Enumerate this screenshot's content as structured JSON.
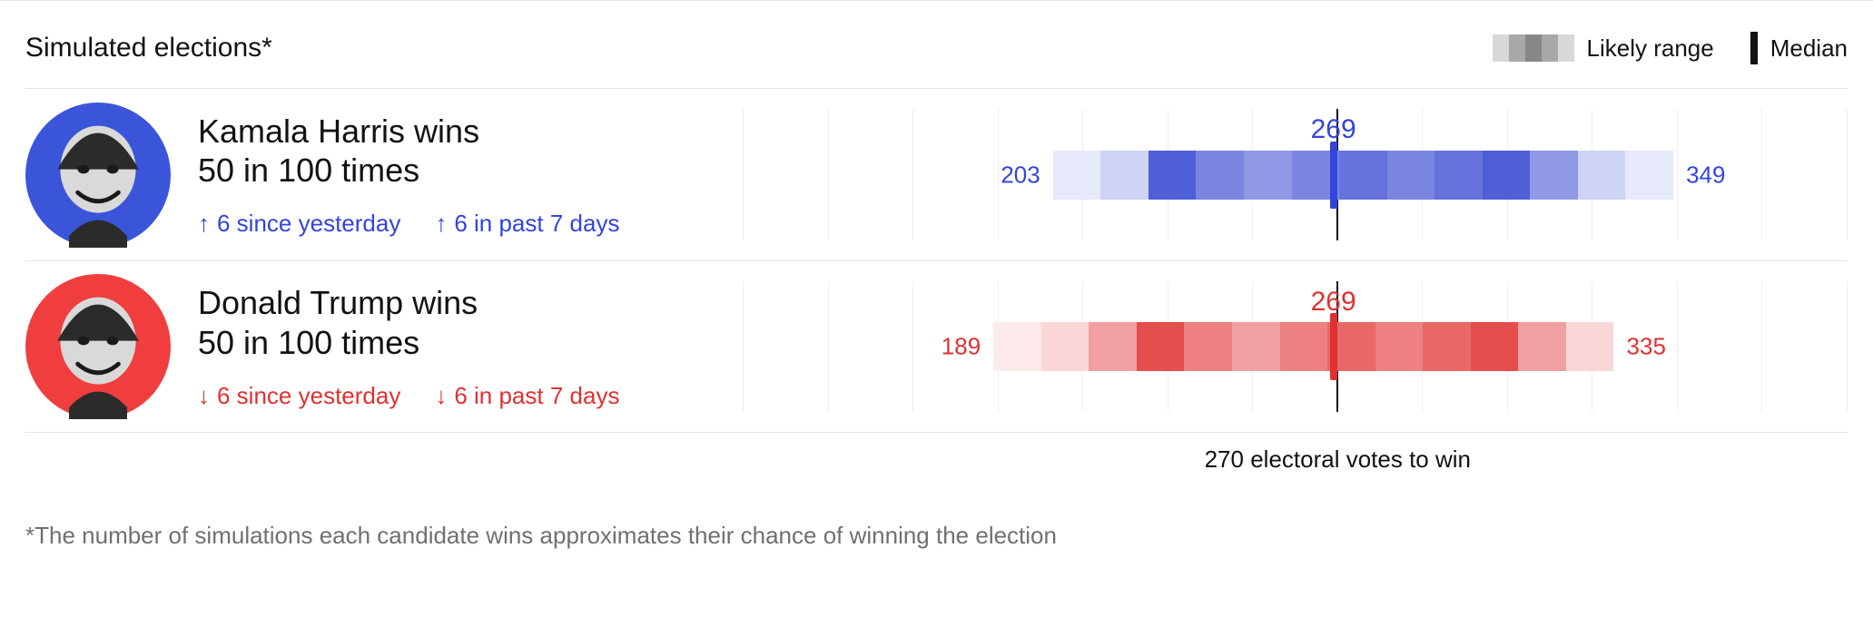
{
  "title": "Simulated elections*",
  "legend": {
    "likely_label": "Likely range",
    "median_label": "Median",
    "swatch_colors": [
      "#d8d8d8",
      "#a8a8a8",
      "#888888",
      "#a8a8a8",
      "#d8d8d8"
    ]
  },
  "axis": {
    "min": 130,
    "max": 390,
    "grid_step": 20,
    "threshold": 270,
    "threshold_label": "270 electoral votes to win",
    "grid_color": "#eeeeee"
  },
  "candidates": [
    {
      "key": "harris",
      "name_line": "Kamala Harris wins",
      "odds_line": "50 in 100 times",
      "color": "#3344dd",
      "text_color": "#3344dd",
      "avatar_bg": "#3a55d9",
      "delta_yesterday": {
        "dir": "up",
        "text": "6 since yesterday"
      },
      "delta_week": {
        "dir": "up",
        "text": "6 in past 7 days"
      },
      "range_min": 203,
      "range_max": 349,
      "median": 269,
      "median_color": "#3344dd",
      "segments": [
        {
          "w": 1,
          "c": "#e6e9fa"
        },
        {
          "w": 1,
          "c": "#cdd3f3"
        },
        {
          "w": 1,
          "c": "#4f5fd8"
        },
        {
          "w": 1,
          "c": "#7a86e0"
        },
        {
          "w": 1,
          "c": "#8f99e6"
        },
        {
          "w": 1,
          "c": "#7a86e0"
        },
        {
          "w": 1,
          "c": "#6673dc"
        },
        {
          "w": 1,
          "c": "#7a86e0"
        },
        {
          "w": 1,
          "c": "#6673dc"
        },
        {
          "w": 1,
          "c": "#4f5fd8"
        },
        {
          "w": 1,
          "c": "#8f99e6"
        },
        {
          "w": 1,
          "c": "#cdd3f3"
        },
        {
          "w": 1,
          "c": "#e6e9fa"
        }
      ]
    },
    {
      "key": "trump",
      "name_line": "Donald Trump wins",
      "odds_line": "50 in 100 times",
      "color": "#e03131",
      "text_color": "#e03131",
      "avatar_bg": "#f03e3e",
      "delta_yesterday": {
        "dir": "down",
        "text": "6 since yesterday"
      },
      "delta_week": {
        "dir": "down",
        "text": "6 in past 7 days"
      },
      "range_min": 189,
      "range_max": 335,
      "median": 269,
      "median_color": "#e03131",
      "segments": [
        {
          "w": 1,
          "c": "#fdeaea"
        },
        {
          "w": 1,
          "c": "#fbd7d7"
        },
        {
          "w": 1,
          "c": "#f0a0a0"
        },
        {
          "w": 1,
          "c": "#e64d4d"
        },
        {
          "w": 1,
          "c": "#ed8080"
        },
        {
          "w": 1,
          "c": "#f0a0a0"
        },
        {
          "w": 1,
          "c": "#ed8080"
        },
        {
          "w": 1,
          "c": "#e96868"
        },
        {
          "w": 1,
          "c": "#ed8080"
        },
        {
          "w": 1,
          "c": "#e96868"
        },
        {
          "w": 1,
          "c": "#e64d4d"
        },
        {
          "w": 1,
          "c": "#f0a0a0"
        },
        {
          "w": 1,
          "c": "#fbd7d7"
        }
      ]
    }
  ],
  "footnote": "*The number of simulations each candidate wins approximates their chance of winning the election"
}
